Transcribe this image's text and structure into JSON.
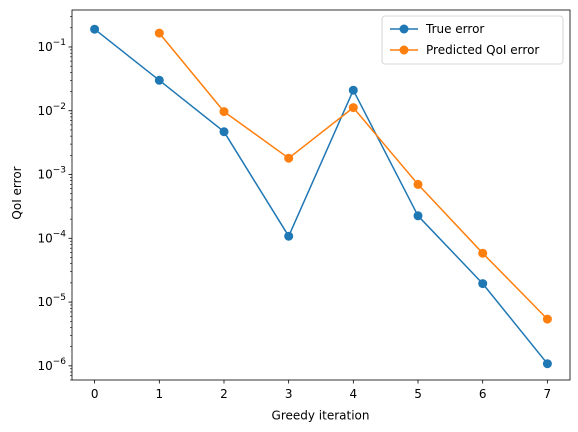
{
  "chart_data": {
    "type": "line",
    "title": "",
    "xlabel": "Greedy iteration",
    "ylabel": "QoI error",
    "yscale": "log",
    "xlim": [
      -0.35,
      7.35
    ],
    "ylim": [
      6e-07,
      0.38
    ],
    "xticks": [
      0,
      1,
      2,
      3,
      4,
      5,
      6,
      7
    ],
    "yticks": [
      {
        "value": 1e-06,
        "base": "10",
        "exp": "−6"
      },
      {
        "value": 1e-05,
        "base": "10",
        "exp": "−5"
      },
      {
        "value": 0.0001,
        "base": "10",
        "exp": "−4"
      },
      {
        "value": 0.001,
        "base": "10",
        "exp": "−3"
      },
      {
        "value": 0.01,
        "base": "10",
        "exp": "−2"
      },
      {
        "value": 0.1,
        "base": "10",
        "exp": "−1"
      }
    ],
    "grid": false,
    "legend_position": "top-right",
    "series": [
      {
        "name": "True error",
        "color": "#1f77b4",
        "marker": "circle",
        "x": [
          0,
          1,
          2,
          3,
          4,
          5,
          6,
          7
        ],
        "y": [
          0.19,
          0.03,
          0.0047,
          0.000108,
          0.021,
          0.000225,
          1.95e-05,
          1.08e-06
        ]
      },
      {
        "name": "Predicted QoI error",
        "color": "#ff7f0e",
        "marker": "circle",
        "x": [
          1,
          2,
          3,
          4,
          5,
          6,
          7
        ],
        "y": [
          0.165,
          0.0097,
          0.0018,
          0.0112,
          0.0007,
          5.85e-05,
          5.4e-06
        ]
      }
    ]
  }
}
